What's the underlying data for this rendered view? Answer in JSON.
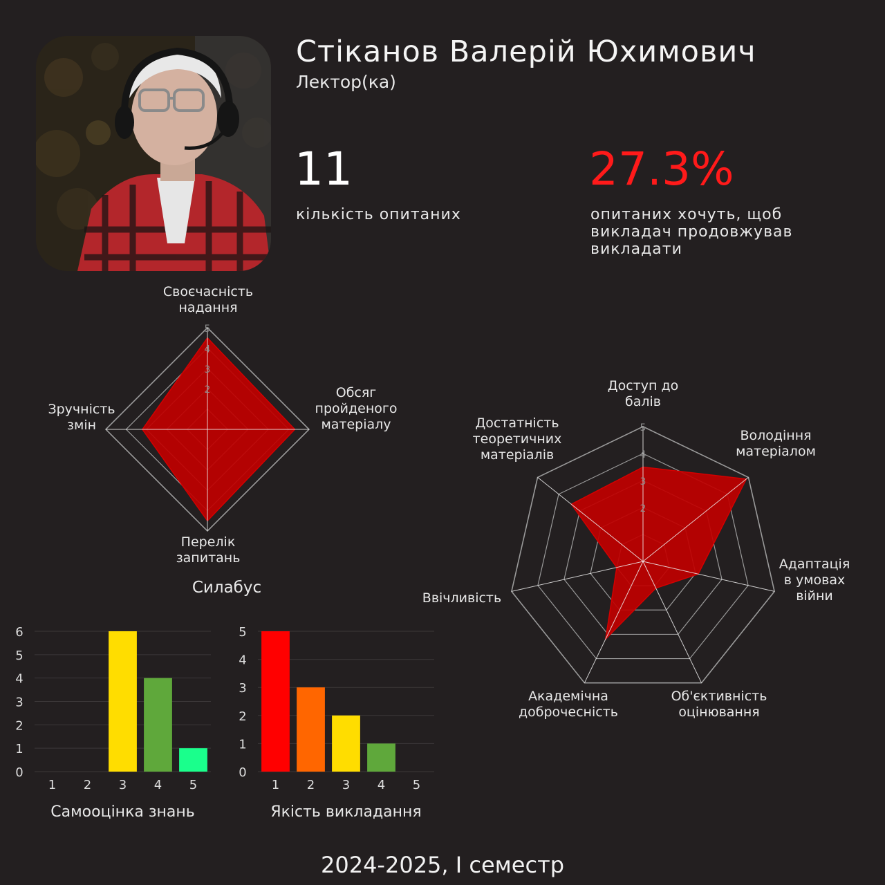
{
  "profile": {
    "name": "Стіканов Валерій Юхимович",
    "role": "Лектор(ка)"
  },
  "stats": {
    "respondents_value": "11",
    "respondents_label": "кількість опитаних",
    "continue_pct_value": "27.3%",
    "continue_pct_label": "опитаних хочуть, щоб викладач продовжував викладати"
  },
  "footer": {
    "period": "2024-2025, І семестр"
  },
  "colors": {
    "background": "#231f20",
    "radar_fill": "#c00000",
    "accent_red": "#ff1a1a",
    "grid": "#9a9a9a"
  },
  "chart_data": [
    {
      "type": "radar",
      "title": "Силабус",
      "axes": [
        "Своєчасність надання",
        "Обсяг пройденого матеріалу",
        "Перелік запитань",
        "Зручність змін"
      ],
      "values": [
        4.5,
        4.3,
        4.5,
        3.2
      ],
      "rlim": [
        0,
        5
      ],
      "ticks": [
        "1",
        "2",
        "3",
        "4",
        "5"
      ],
      "grid": true
    },
    {
      "type": "radar",
      "title": "",
      "axes": [
        "Доступ до балів",
        "Володіння матеріалом",
        "Адаптація в умовах війни",
        "Об'єктивність оцінювання",
        "Академічна доброчесність",
        "Ввічливість",
        "Достатність теоретичних матеріалів"
      ],
      "values": [
        3.5,
        4.9,
        2.1,
        1.1,
        3.2,
        1.0,
        3.4
      ],
      "rlim": [
        0,
        5
      ],
      "ticks": [
        "1",
        "2",
        "3",
        "4",
        "5"
      ],
      "grid": true
    },
    {
      "type": "bar",
      "title": "Самооцінка знань",
      "categories": [
        "1",
        "2",
        "3",
        "4",
        "5"
      ],
      "values": [
        0,
        0,
        6,
        4,
        1
      ],
      "colors": [
        "#ff0000",
        "#ff6600",
        "#ffdd00",
        "#5fa83b",
        "#1aff8c"
      ],
      "ylim": [
        0,
        6
      ],
      "yticks": [
        "0",
        "1",
        "2",
        "3",
        "4",
        "5",
        "6"
      ],
      "grid": true
    },
    {
      "type": "bar",
      "title": "Якість викладання",
      "categories": [
        "1",
        "2",
        "3",
        "4",
        "5"
      ],
      "values": [
        5,
        3,
        2,
        1,
        0
      ],
      "colors": [
        "#ff0000",
        "#ff6600",
        "#ffdd00",
        "#5fa83b",
        "#1aff8c"
      ],
      "ylim": [
        0,
        5
      ],
      "yticks": [
        "0",
        "1",
        "2",
        "3",
        "4",
        "5"
      ],
      "grid": true
    }
  ]
}
